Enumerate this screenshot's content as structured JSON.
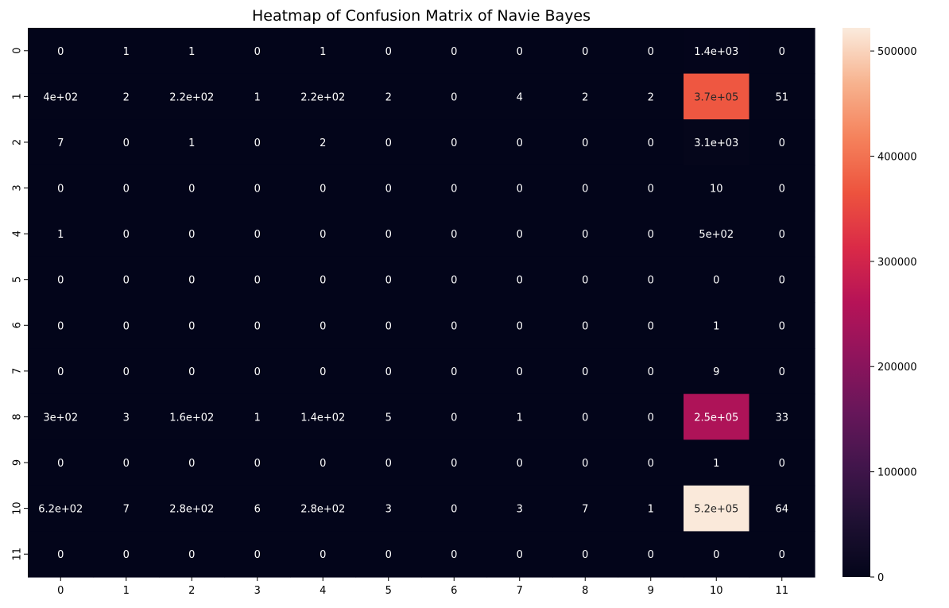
{
  "chart_data": {
    "type": "heatmap",
    "title": "Heatmap of Confusion Matrix of Navie Bayes",
    "xlabel": "",
    "ylabel": "",
    "x_categories": [
      "0",
      "1",
      "2",
      "3",
      "4",
      "5",
      "6",
      "7",
      "8",
      "9",
      "10",
      "11"
    ],
    "y_categories": [
      "0",
      "1",
      "2",
      "3",
      "4",
      "5",
      "6",
      "7",
      "8",
      "9",
      "10",
      "11"
    ],
    "values": [
      [
        0,
        1,
        1,
        0,
        1,
        0,
        0,
        0,
        0,
        0,
        1400,
        0
      ],
      [
        400,
        2,
        220,
        1,
        220,
        2,
        0,
        4,
        2,
        2,
        370000,
        51
      ],
      [
        7,
        0,
        1,
        0,
        2,
        0,
        0,
        0,
        0,
        0,
        3100,
        0
      ],
      [
        0,
        0,
        0,
        0,
        0,
        0,
        0,
        0,
        0,
        0,
        10,
        0
      ],
      [
        1,
        0,
        0,
        0,
        0,
        0,
        0,
        0,
        0,
        0,
        500,
        0
      ],
      [
        0,
        0,
        0,
        0,
        0,
        0,
        0,
        0,
        0,
        0,
        0,
        0
      ],
      [
        0,
        0,
        0,
        0,
        0,
        0,
        0,
        0,
        0,
        0,
        1,
        0
      ],
      [
        0,
        0,
        0,
        0,
        0,
        0,
        0,
        0,
        0,
        0,
        9,
        0
      ],
      [
        300,
        3,
        160,
        1,
        140,
        5,
        0,
        1,
        0,
        0,
        250000,
        33
      ],
      [
        0,
        0,
        0,
        0,
        0,
        0,
        0,
        0,
        0,
        0,
        1,
        0
      ],
      [
        620,
        7,
        280,
        6,
        280,
        3,
        0,
        3,
        7,
        1,
        520000,
        64
      ],
      [
        0,
        0,
        0,
        0,
        0,
        0,
        0,
        0,
        0,
        0,
        0,
        0
      ]
    ],
    "annotations": [
      [
        "0",
        "1",
        "1",
        "0",
        "1",
        "0",
        "0",
        "0",
        "0",
        "0",
        "1.4e+03",
        "0"
      ],
      [
        "4e+02",
        "2",
        "2.2e+02",
        "1",
        "2.2e+02",
        "2",
        "0",
        "4",
        "2",
        "2",
        "3.7e+05",
        "51"
      ],
      [
        "7",
        "0",
        "1",
        "0",
        "2",
        "0",
        "0",
        "0",
        "0",
        "0",
        "3.1e+03",
        "0"
      ],
      [
        "0",
        "0",
        "0",
        "0",
        "0",
        "0",
        "0",
        "0",
        "0",
        "0",
        "10",
        "0"
      ],
      [
        "1",
        "0",
        "0",
        "0",
        "0",
        "0",
        "0",
        "0",
        "0",
        "0",
        "5e+02",
        "0"
      ],
      [
        "0",
        "0",
        "0",
        "0",
        "0",
        "0",
        "0",
        "0",
        "0",
        "0",
        "0",
        "0"
      ],
      [
        "0",
        "0",
        "0",
        "0",
        "0",
        "0",
        "0",
        "0",
        "0",
        "0",
        "1",
        "0"
      ],
      [
        "0",
        "0",
        "0",
        "0",
        "0",
        "0",
        "0",
        "0",
        "0",
        "0",
        "9",
        "0"
      ],
      [
        "3e+02",
        "3",
        "1.6e+02",
        "1",
        "1.4e+02",
        "5",
        "0",
        "1",
        "0",
        "0",
        "2.5e+05",
        "33"
      ],
      [
        "0",
        "0",
        "0",
        "0",
        "0",
        "0",
        "0",
        "0",
        "0",
        "0",
        "1",
        "0"
      ],
      [
        "6.2e+02",
        "7",
        "2.8e+02",
        "6",
        "2.8e+02",
        "3",
        "0",
        "3",
        "7",
        "1",
        "5.2e+05",
        "64"
      ],
      [
        "0",
        "0",
        "0",
        "0",
        "0",
        "0",
        "0",
        "0",
        "0",
        "0",
        "0",
        "0"
      ]
    ],
    "colorbar": {
      "colormap": "rocket",
      "vmin": 0,
      "vmax": 522000,
      "ticks": [
        0,
        100000,
        200000,
        300000,
        400000,
        500000
      ],
      "tick_labels": [
        "0",
        "100000",
        "200000",
        "300000",
        "400000",
        "500000"
      ]
    },
    "grid": false,
    "annotation_colors": {
      "on_dark": "#ffffff",
      "on_light": "#262626"
    }
  }
}
